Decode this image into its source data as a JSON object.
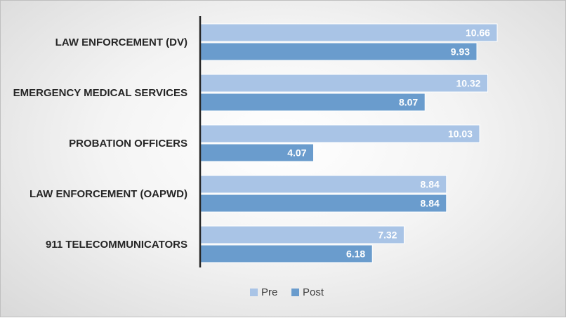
{
  "chart_data": {
    "type": "bar",
    "orientation": "horizontal",
    "categories": [
      "LAW ENFORCEMENT (DV)",
      "EMERGENCY MEDICAL SERVICES",
      "PROBATION OFFICERS",
      "LAW ENFORCEMENT (OAPWD)",
      "911 TELECOMMUNICATORS"
    ],
    "series": [
      {
        "name": "Pre",
        "color": "#a9c4e6",
        "values": [
          10.66,
          10.32,
          10.03,
          8.84,
          7.32
        ],
        "labels": [
          "10.66",
          "10.32",
          "10.03",
          "8.84",
          "7.32"
        ]
      },
      {
        "name": "Post",
        "color": "#6a9ccd",
        "values": [
          9.93,
          8.07,
          4.07,
          8.84,
          6.18
        ],
        "labels": [
          "9.93",
          "8.07",
          "4.07",
          "8.84",
          "6.18"
        ]
      }
    ],
    "title": "",
    "xlabel": "",
    "ylabel": "",
    "xlim": [
      0,
      12.5
    ],
    "grid": false,
    "legend_position": "bottom",
    "data_labels": "inside-end"
  }
}
